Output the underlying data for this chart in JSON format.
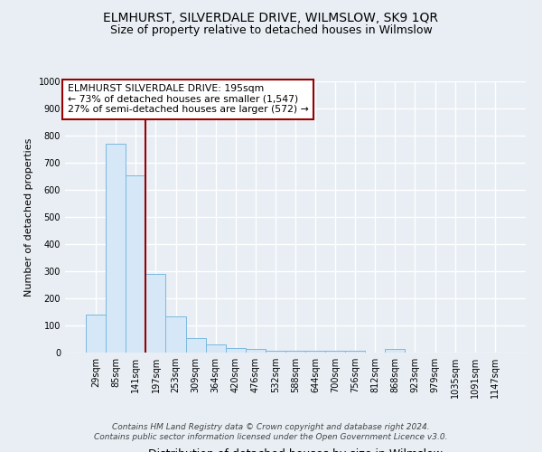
{
  "title": "ELMHURST, SILVERDALE DRIVE, WILMSLOW, SK9 1QR",
  "subtitle": "Size of property relative to detached houses in Wilmslow",
  "xlabel": "Distribution of detached houses by size in Wilmslow",
  "ylabel": "Number of detached properties",
  "footnote1": "Contains HM Land Registry data © Crown copyright and database right 2024.",
  "footnote2": "Contains public sector information licensed under the Open Government Licence v3.0.",
  "annotation_line1": "ELMHURST SILVERDALE DRIVE: 195sqm",
  "annotation_line2": "← 73% of detached houses are smaller (1,547)",
  "annotation_line3": "27% of semi-detached houses are larger (572) →",
  "bar_color": "#d6e8f7",
  "bar_edge_color": "#7ab8e0",
  "vline_color": "#990000",
  "vline_x": 2.5,
  "categories": [
    "29sqm",
    "85sqm",
    "141sqm",
    "197sqm",
    "253sqm",
    "309sqm",
    "364sqm",
    "420sqm",
    "476sqm",
    "532sqm",
    "588sqm",
    "644sqm",
    "700sqm",
    "756sqm",
    "812sqm",
    "868sqm",
    "923sqm",
    "979sqm",
    "1035sqm",
    "1091sqm",
    "1147sqm"
  ],
  "values": [
    140,
    770,
    655,
    290,
    135,
    55,
    30,
    18,
    15,
    8,
    8,
    8,
    7,
    8,
    0,
    12,
    0,
    0,
    0,
    0,
    0
  ],
  "ylim": [
    0,
    1000
  ],
  "background_color": "#e8eef4",
  "plot_bg_color": "#e8eef4",
  "grid_color": "#ffffff",
  "title_fontsize": 10,
  "subtitle_fontsize": 9,
  "ylabel_fontsize": 8,
  "xlabel_fontsize": 9,
  "tick_fontsize": 7,
  "footnote_fontsize": 6.5
}
